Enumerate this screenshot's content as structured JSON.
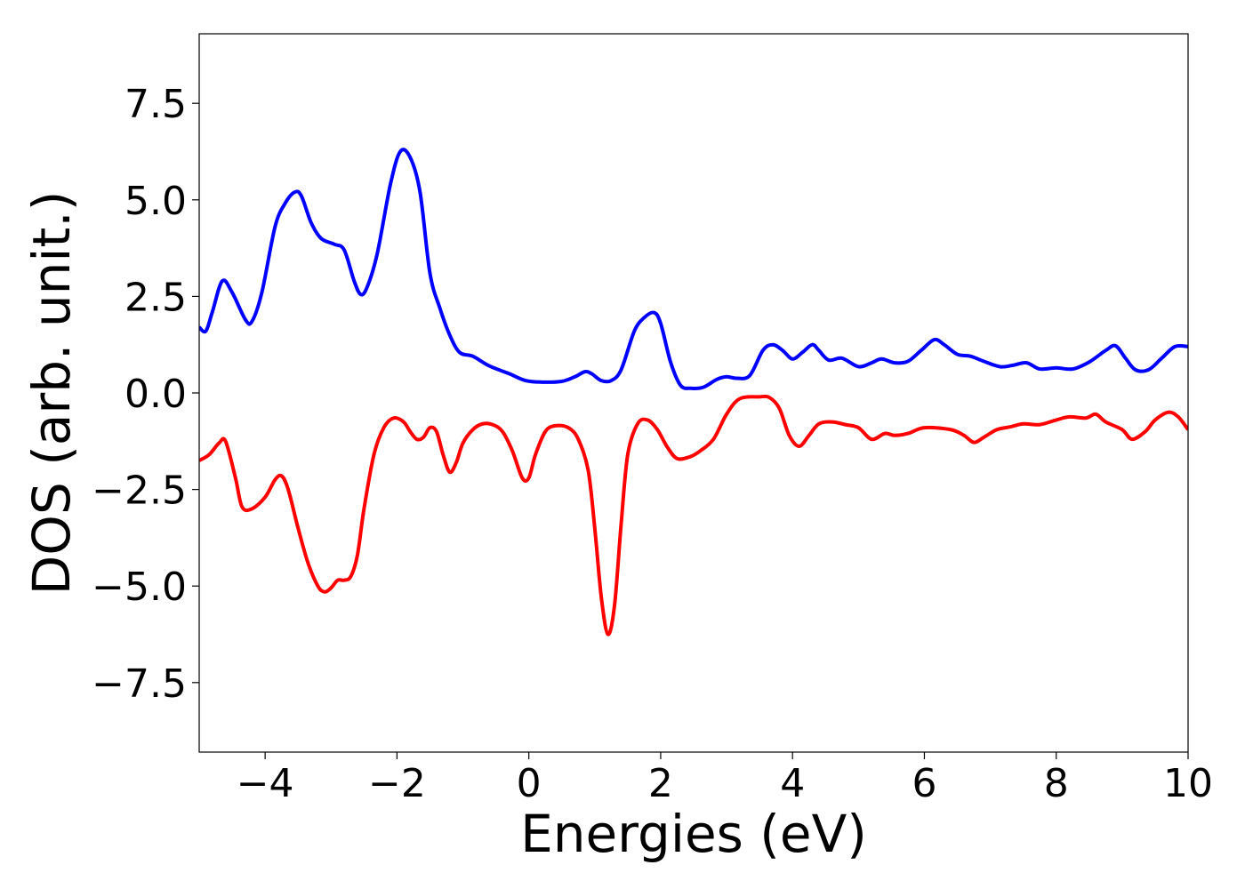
{
  "chart_data": {
    "type": "line",
    "title": "",
    "xlabel": "Energies (eV)",
    "ylabel": "DOS (arb. unit.)",
    "xlim": [
      -5,
      10
    ],
    "ylim": [
      -9.3,
      9.3
    ],
    "x_ticks": [
      -4,
      -2,
      0,
      2,
      4,
      6,
      8,
      10
    ],
    "x_tick_labels": [
      "−4",
      "−2",
      "0",
      "2",
      "4",
      "6",
      "8",
      "10"
    ],
    "y_ticks": [
      -7.5,
      -5.0,
      -2.5,
      0.0,
      2.5,
      5.0,
      7.5
    ],
    "y_tick_labels": [
      "−7.5",
      "−5.0",
      "−2.5",
      "0.0",
      "2.5",
      "5.0",
      "7.5"
    ],
    "grid": false,
    "legend": "none",
    "series": [
      {
        "color": "#0000ff",
        "points": [
          [
            -5.0,
            1.7
          ],
          [
            -4.9,
            1.6
          ],
          [
            -4.8,
            2.1
          ],
          [
            -4.65,
            2.9
          ],
          [
            -4.5,
            2.6
          ],
          [
            -4.3,
            1.9
          ],
          [
            -4.2,
            1.85
          ],
          [
            -4.05,
            2.6
          ],
          [
            -3.85,
            4.3
          ],
          [
            -3.7,
            4.9
          ],
          [
            -3.55,
            5.2
          ],
          [
            -3.45,
            5.1
          ],
          [
            -3.3,
            4.4
          ],
          [
            -3.15,
            4.0
          ],
          [
            -2.95,
            3.85
          ],
          [
            -2.8,
            3.7
          ],
          [
            -2.65,
            2.9
          ],
          [
            -2.55,
            2.55
          ],
          [
            -2.45,
            2.75
          ],
          [
            -2.3,
            3.6
          ],
          [
            -2.1,
            5.4
          ],
          [
            -1.95,
            6.25
          ],
          [
            -1.8,
            6.1
          ],
          [
            -1.65,
            5.2
          ],
          [
            -1.5,
            3.1
          ],
          [
            -1.35,
            2.2
          ],
          [
            -1.2,
            1.5
          ],
          [
            -1.05,
            1.05
          ],
          [
            -0.85,
            0.95
          ],
          [
            -0.6,
            0.7
          ],
          [
            -0.3,
            0.5
          ],
          [
            -0.05,
            0.32
          ],
          [
            0.2,
            0.28
          ],
          [
            0.5,
            0.3
          ],
          [
            0.7,
            0.42
          ],
          [
            0.85,
            0.55
          ],
          [
            0.95,
            0.5
          ],
          [
            1.1,
            0.32
          ],
          [
            1.25,
            0.32
          ],
          [
            1.4,
            0.6
          ],
          [
            1.6,
            1.6
          ],
          [
            1.75,
            1.95
          ],
          [
            1.9,
            2.08
          ],
          [
            2.0,
            1.8
          ],
          [
            2.15,
            0.8
          ],
          [
            2.3,
            0.2
          ],
          [
            2.45,
            0.12
          ],
          [
            2.65,
            0.15
          ],
          [
            2.85,
            0.35
          ],
          [
            3.0,
            0.42
          ],
          [
            3.15,
            0.38
          ],
          [
            3.35,
            0.45
          ],
          [
            3.55,
            1.1
          ],
          [
            3.7,
            1.25
          ],
          [
            3.85,
            1.1
          ],
          [
            4.0,
            0.88
          ],
          [
            4.15,
            1.05
          ],
          [
            4.3,
            1.25
          ],
          [
            4.4,
            1.1
          ],
          [
            4.55,
            0.85
          ],
          [
            4.75,
            0.9
          ],
          [
            5.0,
            0.68
          ],
          [
            5.2,
            0.78
          ],
          [
            5.35,
            0.88
          ],
          [
            5.55,
            0.78
          ],
          [
            5.75,
            0.82
          ],
          [
            5.95,
            1.1
          ],
          [
            6.15,
            1.38
          ],
          [
            6.3,
            1.25
          ],
          [
            6.5,
            1.0
          ],
          [
            6.7,
            0.95
          ],
          [
            6.9,
            0.82
          ],
          [
            7.15,
            0.68
          ],
          [
            7.35,
            0.72
          ],
          [
            7.55,
            0.78
          ],
          [
            7.75,
            0.62
          ],
          [
            8.0,
            0.65
          ],
          [
            8.25,
            0.62
          ],
          [
            8.5,
            0.8
          ],
          [
            8.75,
            1.1
          ],
          [
            8.9,
            1.22
          ],
          [
            9.05,
            0.9
          ],
          [
            9.2,
            0.6
          ],
          [
            9.4,
            0.6
          ],
          [
            9.6,
            0.9
          ],
          [
            9.8,
            1.2
          ],
          [
            10.0,
            1.2
          ]
        ]
      },
      {
        "color": "#ff0000",
        "points": [
          [
            -5.0,
            -1.75
          ],
          [
            -4.85,
            -1.6
          ],
          [
            -4.7,
            -1.3
          ],
          [
            -4.6,
            -1.25
          ],
          [
            -4.45,
            -2.2
          ],
          [
            -4.35,
            -2.95
          ],
          [
            -4.2,
            -3.0
          ],
          [
            -4.0,
            -2.7
          ],
          [
            -3.85,
            -2.25
          ],
          [
            -3.75,
            -2.15
          ],
          [
            -3.65,
            -2.5
          ],
          [
            -3.5,
            -3.5
          ],
          [
            -3.35,
            -4.4
          ],
          [
            -3.2,
            -5.0
          ],
          [
            -3.1,
            -5.15
          ],
          [
            -3.0,
            -5.05
          ],
          [
            -2.9,
            -4.85
          ],
          [
            -2.8,
            -4.85
          ],
          [
            -2.7,
            -4.75
          ],
          [
            -2.6,
            -4.2
          ],
          [
            -2.5,
            -3.0
          ],
          [
            -2.35,
            -1.6
          ],
          [
            -2.2,
            -0.9
          ],
          [
            -2.05,
            -0.65
          ],
          [
            -1.9,
            -0.75
          ],
          [
            -1.8,
            -1.0
          ],
          [
            -1.7,
            -1.2
          ],
          [
            -1.6,
            -1.15
          ],
          [
            -1.5,
            -0.9
          ],
          [
            -1.4,
            -1.0
          ],
          [
            -1.3,
            -1.6
          ],
          [
            -1.2,
            -2.05
          ],
          [
            -1.1,
            -1.8
          ],
          [
            -1.0,
            -1.3
          ],
          [
            -0.85,
            -0.95
          ],
          [
            -0.7,
            -0.8
          ],
          [
            -0.55,
            -0.82
          ],
          [
            -0.4,
            -1.0
          ],
          [
            -0.25,
            -1.5
          ],
          [
            -0.1,
            -2.2
          ],
          [
            0.0,
            -2.2
          ],
          [
            0.1,
            -1.6
          ],
          [
            0.25,
            -1.0
          ],
          [
            0.4,
            -0.85
          ],
          [
            0.6,
            -0.9
          ],
          [
            0.75,
            -1.2
          ],
          [
            0.9,
            -2.0
          ],
          [
            1.0,
            -3.5
          ],
          [
            1.1,
            -5.3
          ],
          [
            1.2,
            -6.25
          ],
          [
            1.3,
            -5.5
          ],
          [
            1.4,
            -3.4
          ],
          [
            1.5,
            -1.6
          ],
          [
            1.65,
            -0.8
          ],
          [
            1.8,
            -0.7
          ],
          [
            1.95,
            -0.95
          ],
          [
            2.1,
            -1.4
          ],
          [
            2.25,
            -1.7
          ],
          [
            2.45,
            -1.65
          ],
          [
            2.6,
            -1.5
          ],
          [
            2.8,
            -1.2
          ],
          [
            3.0,
            -0.55
          ],
          [
            3.2,
            -0.15
          ],
          [
            3.5,
            -0.1
          ],
          [
            3.65,
            -0.12
          ],
          [
            3.8,
            -0.4
          ],
          [
            3.95,
            -1.1
          ],
          [
            4.1,
            -1.38
          ],
          [
            4.25,
            -1.1
          ],
          [
            4.4,
            -0.8
          ],
          [
            4.6,
            -0.75
          ],
          [
            4.8,
            -0.82
          ],
          [
            5.0,
            -0.9
          ],
          [
            5.2,
            -1.2
          ],
          [
            5.4,
            -1.05
          ],
          [
            5.55,
            -1.1
          ],
          [
            5.75,
            -1.05
          ],
          [
            6.0,
            -0.9
          ],
          [
            6.4,
            -0.95
          ],
          [
            6.6,
            -1.1
          ],
          [
            6.75,
            -1.28
          ],
          [
            6.9,
            -1.15
          ],
          [
            7.1,
            -0.95
          ],
          [
            7.3,
            -0.88
          ],
          [
            7.5,
            -0.8
          ],
          [
            7.75,
            -0.82
          ],
          [
            8.0,
            -0.7
          ],
          [
            8.2,
            -0.62
          ],
          [
            8.45,
            -0.65
          ],
          [
            8.6,
            -0.55
          ],
          [
            8.75,
            -0.75
          ],
          [
            9.0,
            -0.95
          ],
          [
            9.15,
            -1.2
          ],
          [
            9.35,
            -1.0
          ],
          [
            9.5,
            -0.7
          ],
          [
            9.7,
            -0.5
          ],
          [
            9.85,
            -0.62
          ],
          [
            10.0,
            -0.95
          ]
        ]
      }
    ]
  }
}
